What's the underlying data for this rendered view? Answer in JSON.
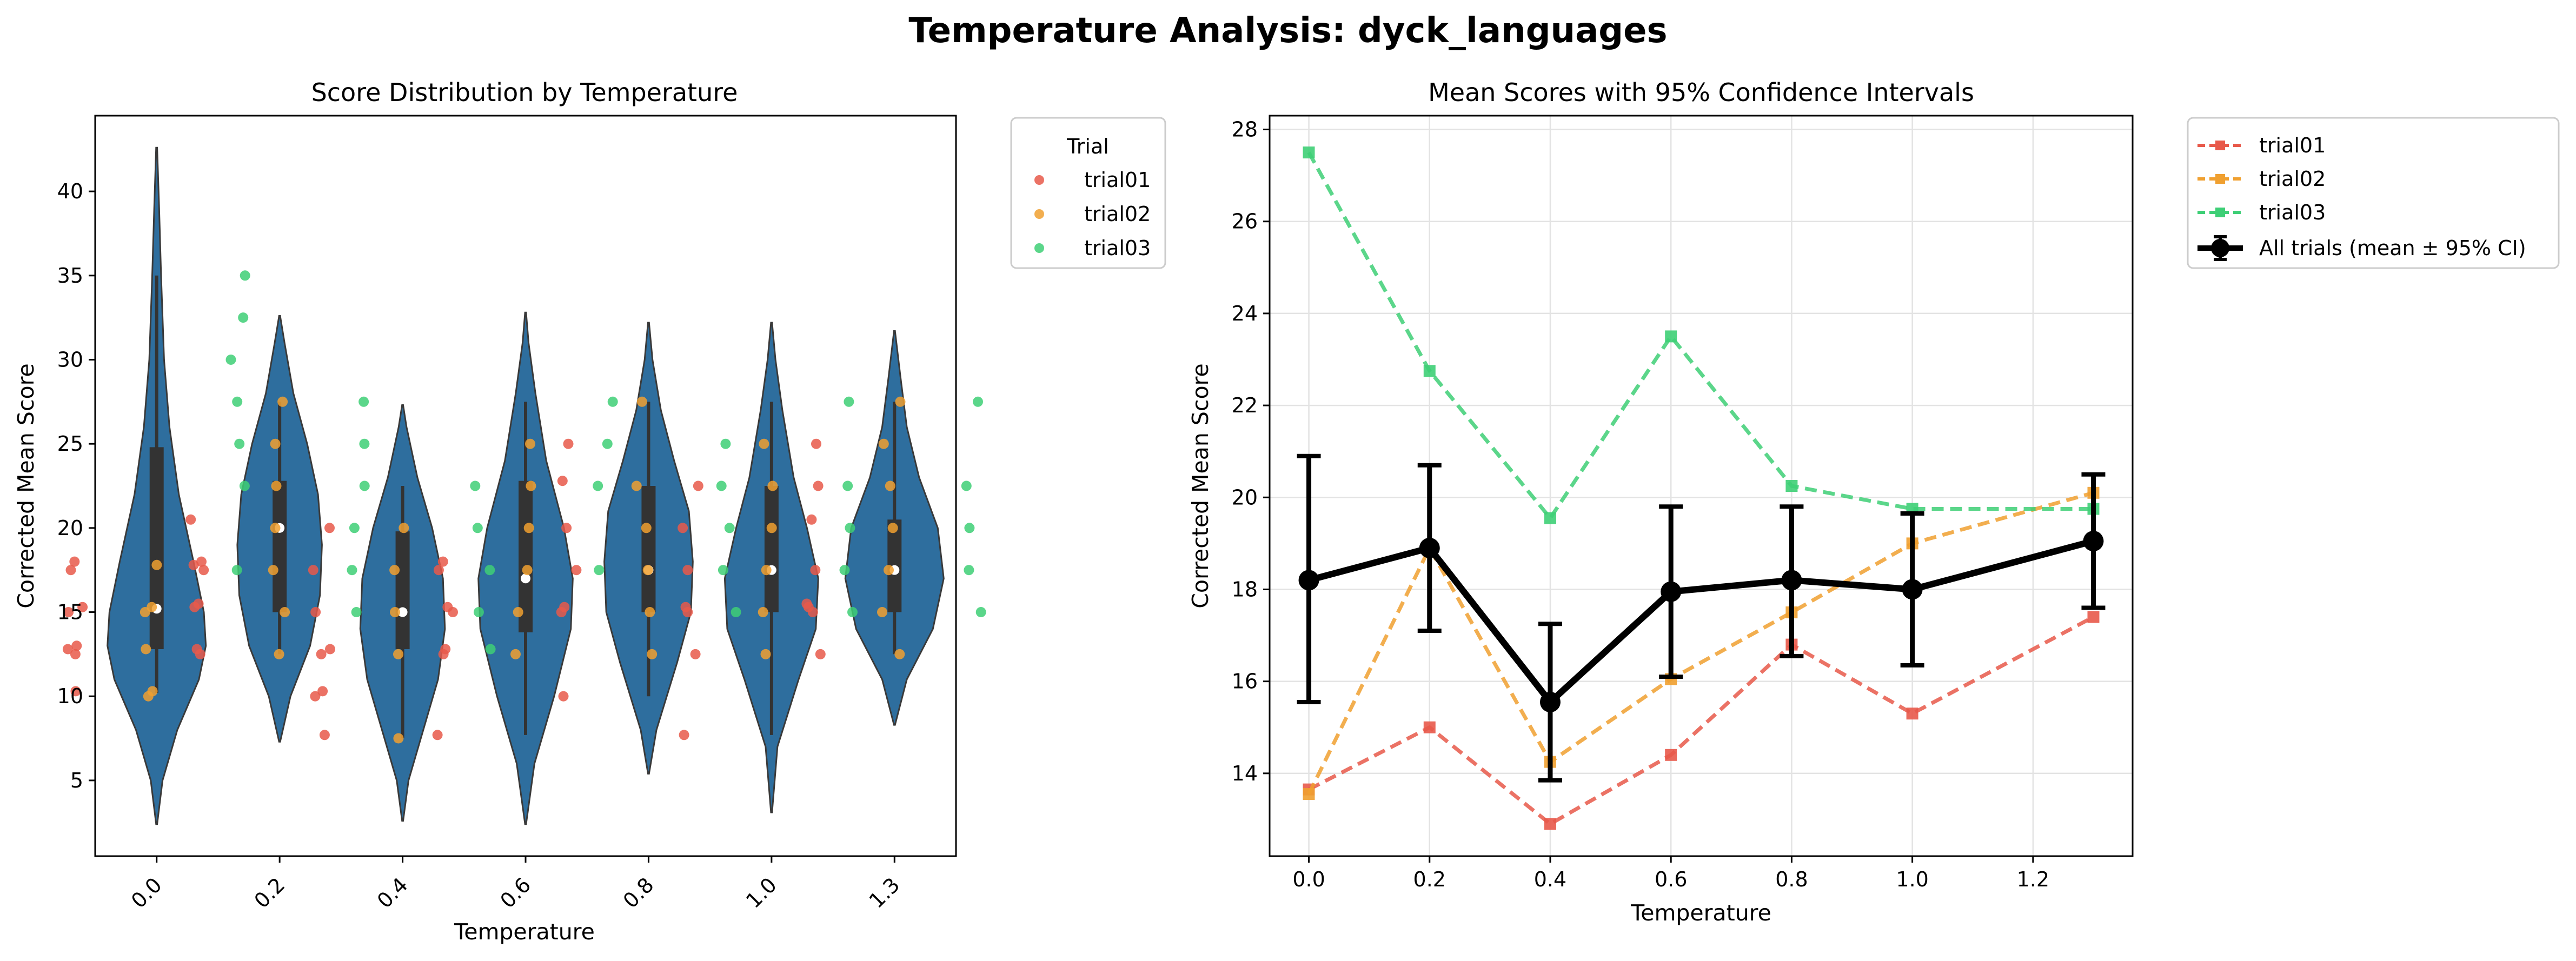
{
  "suptitle": "Temperature Analysis: dyck_languages",
  "colors": {
    "trial01": "#e8594a",
    "trial02": "#f0a030",
    "trial03": "#3ecf76",
    "violin": "#2e6e9e",
    "box": "#333333",
    "aggregate": "#000000"
  },
  "chart_data": [
    {
      "type": "violin",
      "title": "Score Distribution by Temperature",
      "xlabel": "Temperature",
      "ylabel": "Corrected Mean Score",
      "categories": [
        "0.0",
        "0.2",
        "0.4",
        "0.6",
        "0.8",
        "1.0",
        "1.3"
      ],
      "ylim": [
        0.5,
        44.5
      ],
      "yticks": [
        5,
        10,
        15,
        20,
        25,
        30,
        35,
        40
      ],
      "legend": {
        "title": "Trial",
        "entries": [
          "trial01",
          "trial02",
          "trial03"
        ],
        "placement": "outside upper right"
      },
      "violins": [
        {
          "category": "0.0",
          "min": 2.4,
          "max": 42.6,
          "q1": 12.8,
          "median": 15.2,
          "q3": 24.8,
          "whisker_low": 10.2,
          "whisker_high": 35.0,
          "profile": [
            [
              2.4,
              0.01
            ],
            [
              5,
              0.12
            ],
            [
              8,
              0.42
            ],
            [
              11,
              0.86
            ],
            [
              13,
              1.0
            ],
            [
              15,
              0.96
            ],
            [
              18,
              0.75
            ],
            [
              22,
              0.45
            ],
            [
              26,
              0.26
            ],
            [
              30,
              0.15
            ],
            [
              35,
              0.09
            ],
            [
              39,
              0.05
            ],
            [
              42.6,
              0.01
            ]
          ]
        },
        {
          "category": "0.2",
          "min": 7.3,
          "max": 32.6,
          "q1": 15.0,
          "median": 20.0,
          "q3": 22.8,
          "whisker_low": 12.5,
          "whisker_high": 27.5,
          "profile": [
            [
              7.3,
              0.01
            ],
            [
              10,
              0.22
            ],
            [
              13,
              0.62
            ],
            [
              16,
              0.82
            ],
            [
              19,
              0.86
            ],
            [
              22,
              0.78
            ],
            [
              25,
              0.56
            ],
            [
              28,
              0.28
            ],
            [
              31,
              0.1
            ],
            [
              32.6,
              0.01
            ]
          ]
        },
        {
          "category": "0.4",
          "min": 2.6,
          "max": 27.3,
          "q1": 12.8,
          "median": 15.0,
          "q3": 19.8,
          "whisker_low": 7.5,
          "whisker_high": 22.5,
          "profile": [
            [
              2.6,
              0.01
            ],
            [
              5,
              0.12
            ],
            [
              8,
              0.42
            ],
            [
              11,
              0.72
            ],
            [
              14,
              0.86
            ],
            [
              17,
              0.82
            ],
            [
              20,
              0.6
            ],
            [
              23,
              0.3
            ],
            [
              26,
              0.08
            ],
            [
              27.3,
              0.01
            ]
          ]
        },
        {
          "category": "0.6",
          "min": 2.4,
          "max": 32.8,
          "q1": 13.8,
          "median": 17.0,
          "q3": 22.8,
          "whisker_low": 7.7,
          "whisker_high": 27.5,
          "profile": [
            [
              2.4,
              0.01
            ],
            [
              6,
              0.18
            ],
            [
              10,
              0.58
            ],
            [
              14,
              0.92
            ],
            [
              17,
              0.96
            ],
            [
              20,
              0.78
            ],
            [
              24,
              0.42
            ],
            [
              28,
              0.2
            ],
            [
              31,
              0.06
            ],
            [
              32.8,
              0.01
            ]
          ]
        },
        {
          "category": "0.8",
          "min": 5.4,
          "max": 32.2,
          "q1": 15.0,
          "median": 17.5,
          "q3": 22.5,
          "whisker_low": 10.0,
          "whisker_high": 27.5,
          "profile": [
            [
              5.4,
              0.01
            ],
            [
              8,
              0.16
            ],
            [
              12,
              0.58
            ],
            [
              15,
              0.86
            ],
            [
              18,
              0.9
            ],
            [
              21,
              0.82
            ],
            [
              24,
              0.52
            ],
            [
              27,
              0.25
            ],
            [
              30,
              0.08
            ],
            [
              32.2,
              0.01
            ]
          ]
        },
        {
          "category": "1.0",
          "min": 3.1,
          "max": 32.2,
          "q1": 15.0,
          "median": 17.5,
          "q3": 22.5,
          "whisker_low": 7.7,
          "whisker_high": 27.5,
          "profile": [
            [
              3.1,
              0.01
            ],
            [
              7,
              0.12
            ],
            [
              11,
              0.55
            ],
            [
              14,
              0.9
            ],
            [
              17,
              0.95
            ],
            [
              20,
              0.72
            ],
            [
              23,
              0.45
            ],
            [
              27,
              0.22
            ],
            [
              30,
              0.08
            ],
            [
              32.2,
              0.01
            ]
          ]
        },
        {
          "category": "1.3",
          "min": 8.3,
          "max": 31.7,
          "q1": 15.0,
          "median": 17.5,
          "q3": 20.5,
          "whisker_low": 12.5,
          "whisker_high": 27.5,
          "profile": [
            [
              8.3,
              0.01
            ],
            [
              11,
              0.25
            ],
            [
              14,
              0.78
            ],
            [
              17,
              1.0
            ],
            [
              20,
              0.88
            ],
            [
              23,
              0.5
            ],
            [
              26,
              0.25
            ],
            [
              29,
              0.12
            ],
            [
              31.7,
              0.01
            ]
          ]
        }
      ],
      "strip_points": {
        "trial01": [
          [
            0,
            12.5
          ],
          [
            0,
            13.0
          ],
          [
            0,
            15.0
          ],
          [
            0,
            17.5
          ],
          [
            0,
            18.0
          ],
          [
            0,
            10.3
          ],
          [
            0,
            12.8
          ],
          [
            0,
            15.3
          ],
          [
            1,
            12.5
          ],
          [
            1,
            12.8
          ],
          [
            1,
            15.3
          ],
          [
            1,
            17.5
          ],
          [
            1,
            18.0
          ],
          [
            1,
            20.5
          ],
          [
            1,
            15.5
          ],
          [
            1,
            17.8
          ],
          [
            2,
            7.7
          ],
          [
            2,
            10.0
          ],
          [
            2,
            10.3
          ],
          [
            2,
            12.5
          ],
          [
            2,
            15.0
          ],
          [
            2,
            17.5
          ],
          [
            2,
            20.0
          ],
          [
            2,
            12.8
          ],
          [
            3,
            7.7
          ],
          [
            3,
            12.5
          ],
          [
            3,
            15.0
          ],
          [
            3,
            17.5
          ],
          [
            3,
            18.0
          ],
          [
            3,
            12.8
          ],
          [
            3,
            15.3
          ],
          [
            4,
            10.0
          ],
          [
            4,
            15.0
          ],
          [
            4,
            17.5
          ],
          [
            4,
            20.0
          ],
          [
            4,
            22.8
          ],
          [
            4,
            25.0
          ],
          [
            4,
            15.3
          ],
          [
            5,
            7.7
          ],
          [
            5,
            12.5
          ],
          [
            5,
            15.0
          ],
          [
            5,
            17.5
          ],
          [
            5,
            20.0
          ],
          [
            5,
            22.5
          ],
          [
            5,
            15.3
          ],
          [
            6,
            12.5
          ],
          [
            6,
            15.0
          ],
          [
            6,
            15.3
          ],
          [
            6,
            17.5
          ],
          [
            6,
            20.5
          ],
          [
            6,
            22.5
          ],
          [
            6,
            25.0
          ],
          [
            6,
            15.5
          ]
        ],
        "trial02": [
          [
            0,
            10.0
          ],
          [
            0,
            10.3
          ],
          [
            0,
            12.8
          ],
          [
            0,
            15.0
          ],
          [
            0,
            15.3
          ],
          [
            0,
            17.8
          ],
          [
            1,
            12.5
          ],
          [
            1,
            15.0
          ],
          [
            1,
            17.5
          ],
          [
            1,
            20.0
          ],
          [
            1,
            22.5
          ],
          [
            1,
            25.0
          ],
          [
            1,
            27.5
          ],
          [
            2,
            7.5
          ],
          [
            2,
            12.5
          ],
          [
            2,
            15.0
          ],
          [
            2,
            17.5
          ],
          [
            2,
            20.0
          ],
          [
            3,
            12.5
          ],
          [
            3,
            15.0
          ],
          [
            3,
            17.5
          ],
          [
            3,
            20.0
          ],
          [
            3,
            22.5
          ],
          [
            3,
            25.0
          ],
          [
            4,
            12.5
          ],
          [
            4,
            15.0
          ],
          [
            4,
            17.5
          ],
          [
            4,
            20.0
          ],
          [
            4,
            22.5
          ],
          [
            4,
            27.5
          ],
          [
            5,
            12.5
          ],
          [
            5,
            15.0
          ],
          [
            5,
            17.5
          ],
          [
            5,
            20.0
          ],
          [
            5,
            22.5
          ],
          [
            5,
            25.0
          ],
          [
            6,
            12.5
          ],
          [
            6,
            15.0
          ],
          [
            6,
            17.5
          ],
          [
            6,
            20.0
          ],
          [
            6,
            22.5
          ],
          [
            6,
            25.0
          ],
          [
            6,
            27.5
          ]
        ],
        "trial03": [
          [
            0,
            17.5
          ],
          [
            0,
            22.5
          ],
          [
            0,
            25.0
          ],
          [
            0,
            27.5
          ],
          [
            0,
            30.0
          ],
          [
            0,
            32.5
          ],
          [
            0,
            35.0
          ],
          [
            1,
            15.0
          ],
          [
            1,
            17.5
          ],
          [
            1,
            20.0
          ],
          [
            1,
            22.5
          ],
          [
            1,
            25.0
          ],
          [
            1,
            27.5
          ],
          [
            2,
            12.8
          ],
          [
            2,
            15.0
          ],
          [
            2,
            17.5
          ],
          [
            2,
            20.0
          ],
          [
            2,
            22.5
          ],
          [
            3,
            17.5
          ],
          [
            3,
            22.5
          ],
          [
            3,
            25.0
          ],
          [
            3,
            27.5
          ],
          [
            4,
            15.0
          ],
          [
            4,
            17.5
          ],
          [
            4,
            20.0
          ],
          [
            4,
            22.5
          ],
          [
            4,
            25.0
          ],
          [
            5,
            15.0
          ],
          [
            5,
            17.5
          ],
          [
            5,
            20.0
          ],
          [
            5,
            22.5
          ],
          [
            5,
            27.5
          ],
          [
            6,
            15.0
          ],
          [
            6,
            17.5
          ],
          [
            6,
            20.0
          ],
          [
            6,
            22.5
          ],
          [
            6,
            27.5
          ]
        ]
      }
    },
    {
      "type": "line",
      "title": "Mean Scores with 95% Confidence Intervals",
      "xlabel": "Temperature",
      "ylabel": "Corrected Mean Score",
      "x": [
        0.0,
        0.2,
        0.4,
        0.6,
        0.8,
        1.0,
        1.3
      ],
      "xlim": [
        -0.065,
        1.365
      ],
      "ylim": [
        12.2,
        28.3
      ],
      "xticks": [
        0.0,
        0.2,
        0.4,
        0.6,
        0.8,
        1.0,
        1.2
      ],
      "yticks": [
        14,
        16,
        18,
        20,
        22,
        24,
        26,
        28
      ],
      "grid": true,
      "legend_placement": "outside upper right",
      "series": [
        {
          "name": "trial01",
          "values": [
            13.65,
            15.0,
            12.9,
            14.4,
            16.8,
            15.3,
            17.4
          ]
        },
        {
          "name": "trial02",
          "values": [
            13.55,
            18.9,
            14.25,
            16.05,
            17.5,
            19.0,
            20.1
          ]
        },
        {
          "name": "trial03",
          "values": [
            27.5,
            22.75,
            19.55,
            23.5,
            20.25,
            19.75,
            19.75
          ]
        }
      ],
      "aggregate": {
        "name": "All trials (mean ± 95% CI)",
        "values": [
          18.2,
          18.9,
          15.55,
          17.95,
          18.2,
          18.0,
          19.05
        ],
        "ci_low": [
          15.55,
          17.1,
          13.85,
          16.1,
          16.55,
          16.35,
          17.6
        ],
        "ci_high": [
          20.9,
          20.7,
          17.25,
          19.8,
          19.8,
          19.65,
          20.5
        ]
      }
    }
  ]
}
